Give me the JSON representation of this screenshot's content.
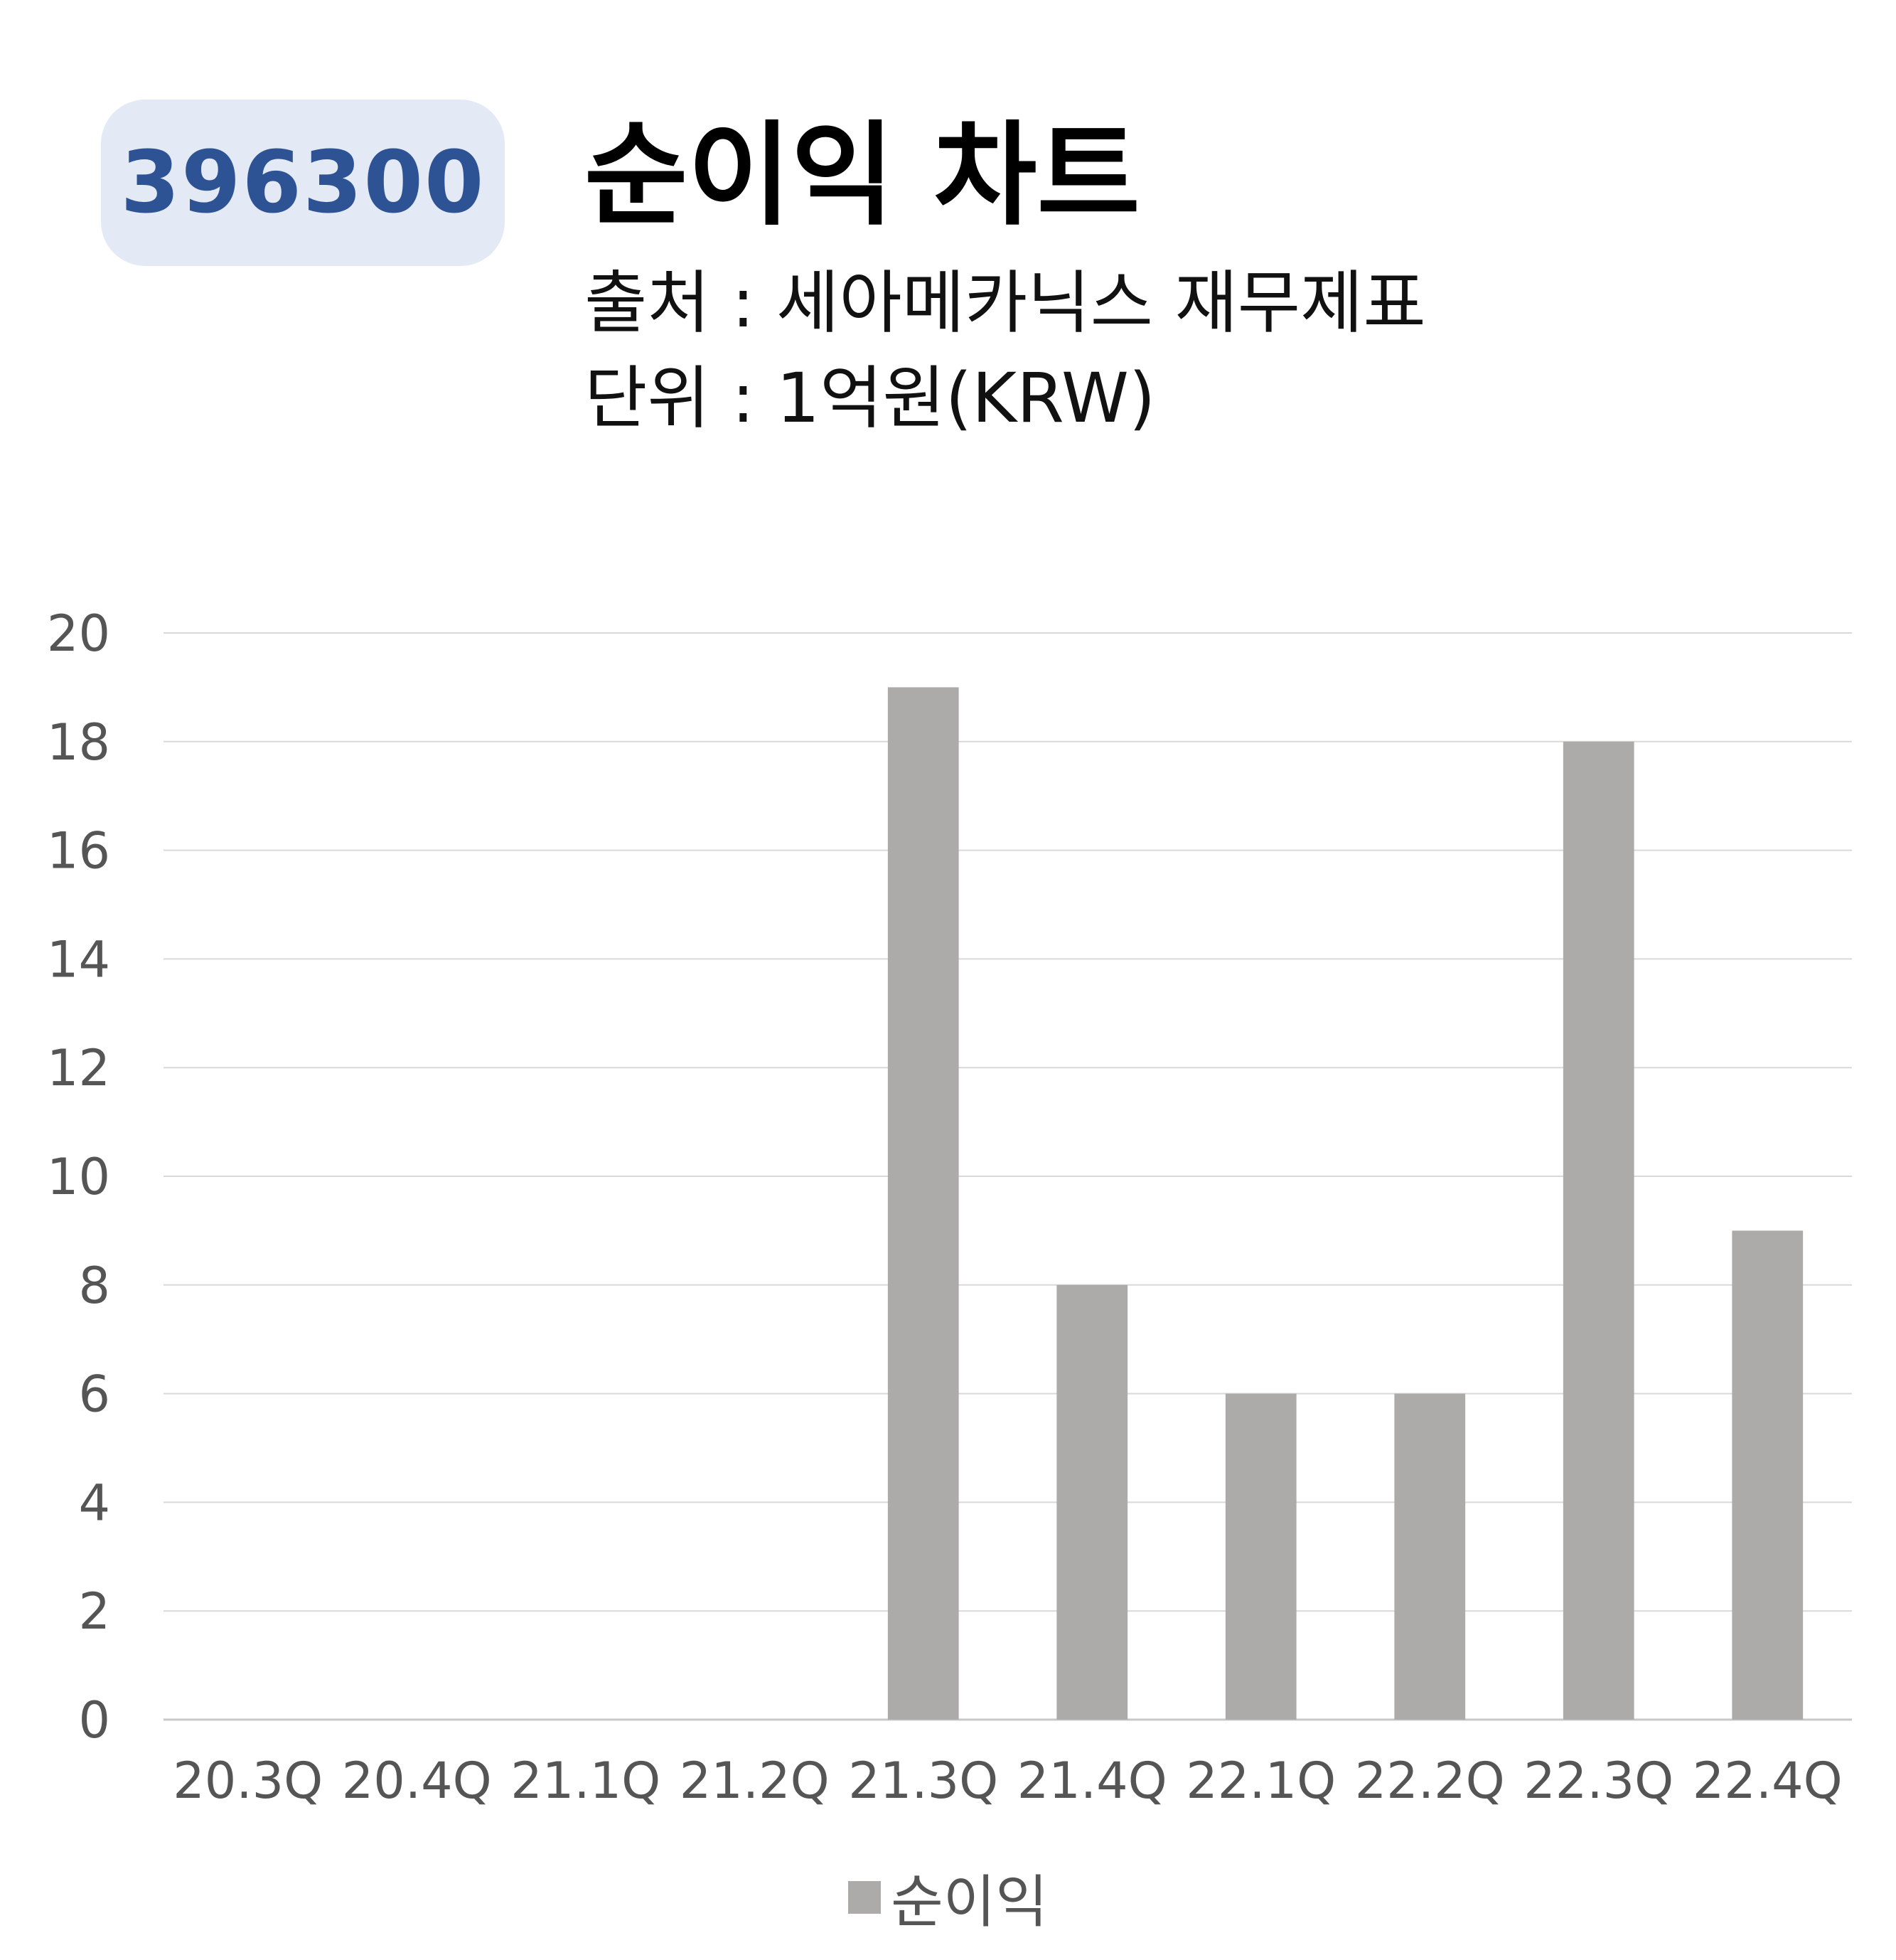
{
  "header": {
    "code": "396300",
    "title": "순이익 차트",
    "source": "출처 : 세아메카닉스 재무제표",
    "unit": "단위 : 1억원(KRW)"
  },
  "colors": {
    "badge_bg": "#e3e9f5",
    "badge_text": "#2d5394",
    "bar": "#adabaa",
    "grid": "#d9d9d9"
  },
  "chart_data": {
    "type": "bar",
    "categories": [
      "20.3Q",
      "20.4Q",
      "21.1Q",
      "21.2Q",
      "21.3Q",
      "21.4Q",
      "22.1Q",
      "22.2Q",
      "22.3Q",
      "22.4Q"
    ],
    "series": [
      {
        "name": "순이익",
        "values": [
          0,
          0,
          0,
          0,
          19,
          8,
          6,
          6,
          18,
          9
        ]
      }
    ],
    "ylim": [
      0,
      20
    ],
    "yticks": [
      0,
      2,
      4,
      6,
      8,
      10,
      12,
      14,
      16,
      18,
      20
    ],
    "grid": true,
    "legend_position": "bottom"
  }
}
